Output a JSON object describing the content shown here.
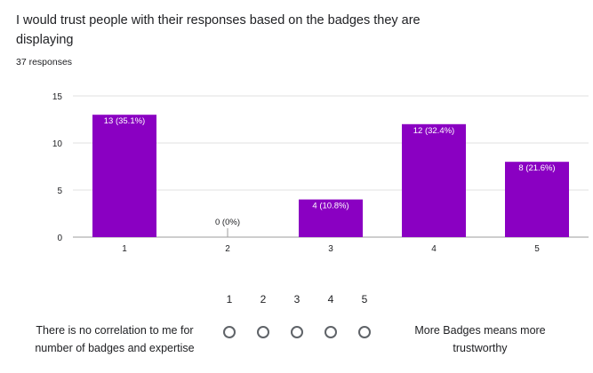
{
  "question": {
    "title": "I would trust people with their responses based on the badges they are displaying",
    "responses": "37 responses"
  },
  "colors": {
    "bar": "#8a00c2",
    "gridline": "#e0e0e0",
    "axis": "#9e9e9e"
  },
  "chart_data": {
    "type": "bar",
    "categories": [
      "1",
      "2",
      "3",
      "4",
      "5"
    ],
    "values": [
      13,
      0,
      4,
      12,
      8
    ],
    "data_labels": [
      "13 (35.1%)",
      "0 (0%)",
      "4 (10.8%)",
      "12 (32.4%)",
      "8 (21.6%)"
    ],
    "yticks": [
      "0",
      "5",
      "10",
      "15"
    ],
    "ylim": [
      0,
      15
    ],
    "grid": true,
    "title": "",
    "xlabel": "",
    "ylabel": ""
  },
  "scale": {
    "numbers": [
      "1",
      "2",
      "3",
      "4",
      "5"
    ],
    "low_label": "There is no correlation to me for number of badges and expertise",
    "high_label": "More Badges means more trustworthy"
  }
}
